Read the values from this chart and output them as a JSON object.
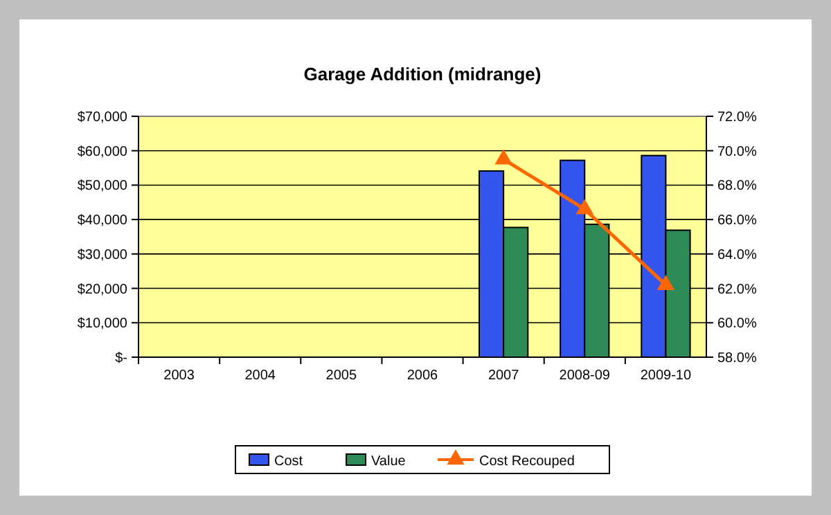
{
  "chart_data": {
    "type": "bar",
    "title": "Garage Addition (midrange)",
    "categories": [
      "2003",
      "2004",
      "2005",
      "2006",
      "2007",
      "2008-09",
      "2009-10"
    ],
    "series": [
      {
        "name": "Cost",
        "color": "#3355ee",
        "values": [
          null,
          null,
          null,
          null,
          54100,
          57200,
          58600
        ]
      },
      {
        "name": "Value",
        "color": "#2e8b57",
        "values": [
          null,
          null,
          null,
          null,
          37700,
          38600,
          36900
        ]
      },
      {
        "name": "Cost Recouped",
        "type": "line",
        "axis": "y2",
        "color": "#ff6600",
        "marker": "triangle",
        "values": [
          null,
          null,
          null,
          null,
          69.5,
          66.6,
          62.2
        ]
      }
    ],
    "ylim": [
      0,
      70000
    ],
    "yticks": [
      {
        "value": 0,
        "label": "$-"
      },
      {
        "value": 10000,
        "label": "$10,000"
      },
      {
        "value": 20000,
        "label": "$20,000"
      },
      {
        "value": 30000,
        "label": "$30,000"
      },
      {
        "value": 40000,
        "label": "$40,000"
      },
      {
        "value": 50000,
        "label": "$50,000"
      },
      {
        "value": 60000,
        "label": "$60,000"
      },
      {
        "value": 70000,
        "label": "$70,000"
      }
    ],
    "y2lim": [
      58,
      72
    ],
    "y2ticks": [
      {
        "value": 58,
        "label": "58.0%"
      },
      {
        "value": 60,
        "label": "60.0%"
      },
      {
        "value": 62,
        "label": "62.0%"
      },
      {
        "value": 64,
        "label": "64.0%"
      },
      {
        "value": 66,
        "label": "66.0%"
      },
      {
        "value": 68,
        "label": "68.0%"
      },
      {
        "value": 70,
        "label": "70.0%"
      },
      {
        "value": 72,
        "label": "72.0%"
      }
    ],
    "grid": "y",
    "legend": "bottom"
  }
}
